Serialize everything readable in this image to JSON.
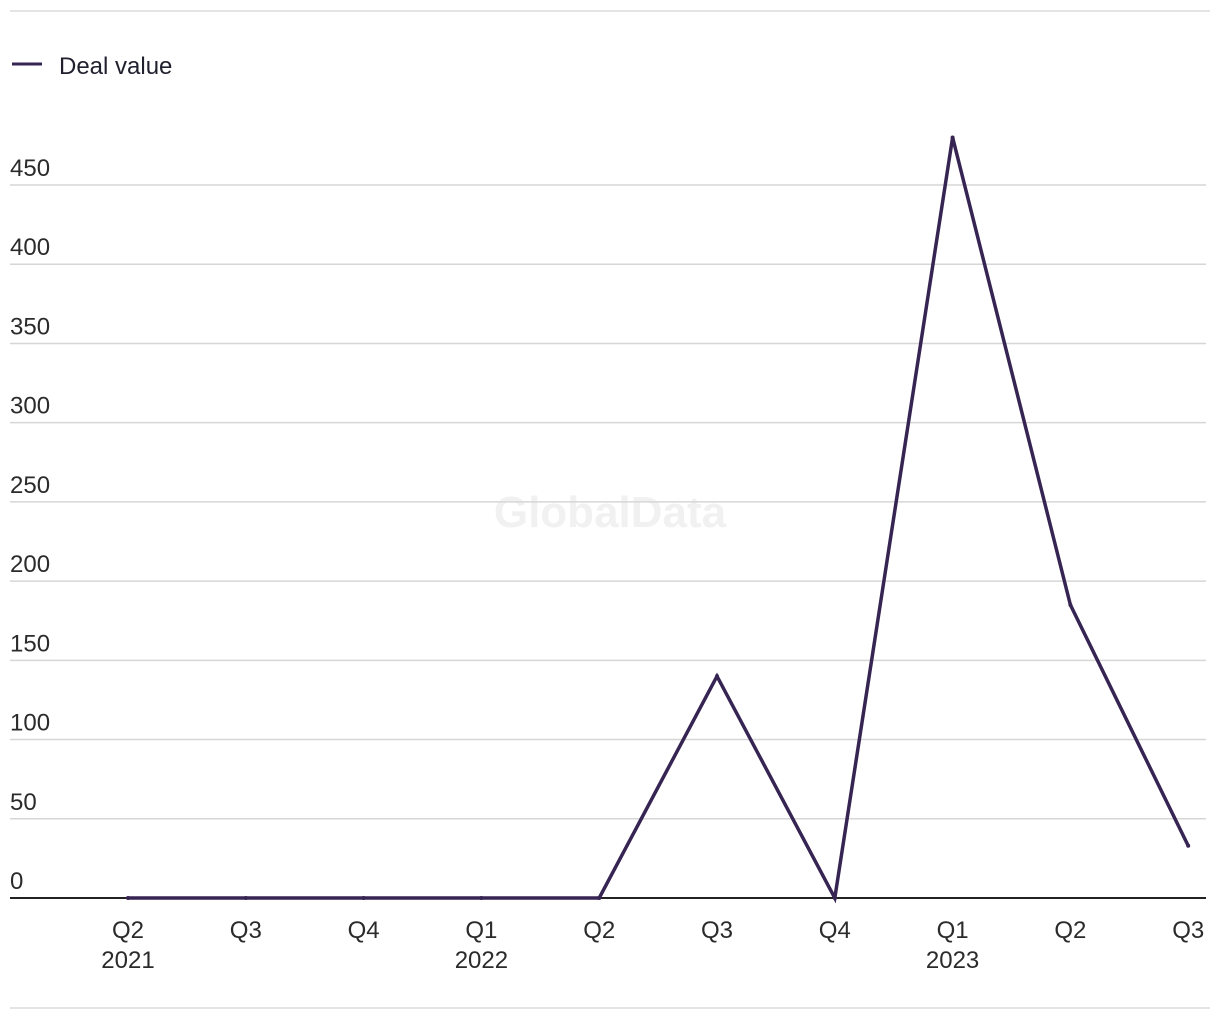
{
  "colors": {
    "series": "#362553",
    "grid": "#d6d6d6",
    "axis": "#222222"
  },
  "watermark": "GlobalData",
  "chart_data": {
    "type": "line",
    "title": "",
    "xlabel": "",
    "ylabel": "",
    "legend_position": "top-left",
    "grid": true,
    "ylim": [
      0,
      450
    ],
    "yticks": [
      "0",
      "50",
      "100",
      "150",
      "200",
      "250",
      "300",
      "350",
      "400",
      "450"
    ],
    "categories": [
      {
        "quarter": "Q2",
        "year": "2021"
      },
      {
        "quarter": "Q3",
        "year": ""
      },
      {
        "quarter": "Q4",
        "year": ""
      },
      {
        "quarter": "Q1",
        "year": "2022"
      },
      {
        "quarter": "Q2",
        "year": ""
      },
      {
        "quarter": "Q3",
        "year": ""
      },
      {
        "quarter": "Q4",
        "year": ""
      },
      {
        "quarter": "Q1",
        "year": "2023"
      },
      {
        "quarter": "Q2",
        "year": ""
      },
      {
        "quarter": "Q3",
        "year": ""
      }
    ],
    "series": [
      {
        "name": "Deal value",
        "values": [
          0,
          0,
          0,
          0,
          0,
          140,
          0,
          480,
          185,
          33
        ]
      }
    ]
  }
}
